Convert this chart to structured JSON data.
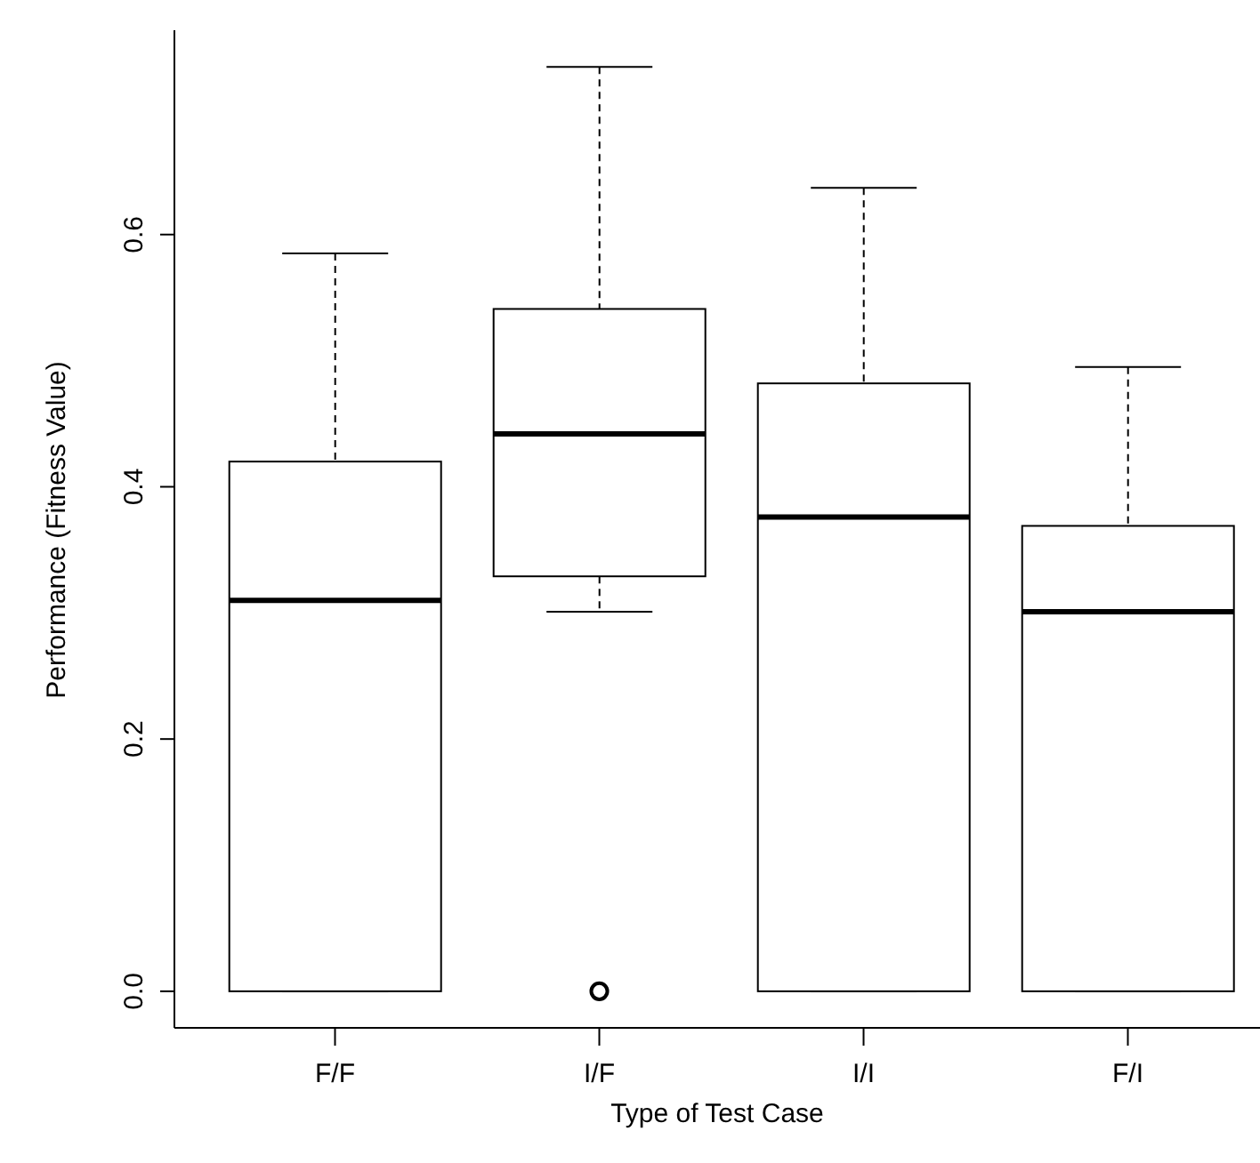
{
  "chart_data": {
    "type": "box",
    "xlabel": "Type of Test Case",
    "ylabel": "Performance (Fitness Value)",
    "categories": [
      "F/F",
      "I/F",
      "I/I",
      "F/I"
    ],
    "boxes": [
      {
        "low": 0,
        "q1": 0,
        "median": 0.31,
        "q3": 0.42,
        "high": 0.585
      },
      {
        "low": 0.301,
        "q1": 0.329,
        "median": 0.442,
        "q3": 0.541,
        "high": 0.733,
        "outliers": [
          0
        ]
      },
      {
        "low": 0,
        "q1": 0,
        "median": 0.376,
        "q3": 0.482,
        "high": 0.637
      },
      {
        "low": 0,
        "q1": 0,
        "median": 0.301,
        "q3": 0.369,
        "high": 0.495
      }
    ],
    "ylim": [
      -0.029,
      0.762
    ],
    "yticks": [
      {
        "value": 0,
        "label": "0.0"
      },
      0.2,
      0.4,
      0.6
    ]
  }
}
